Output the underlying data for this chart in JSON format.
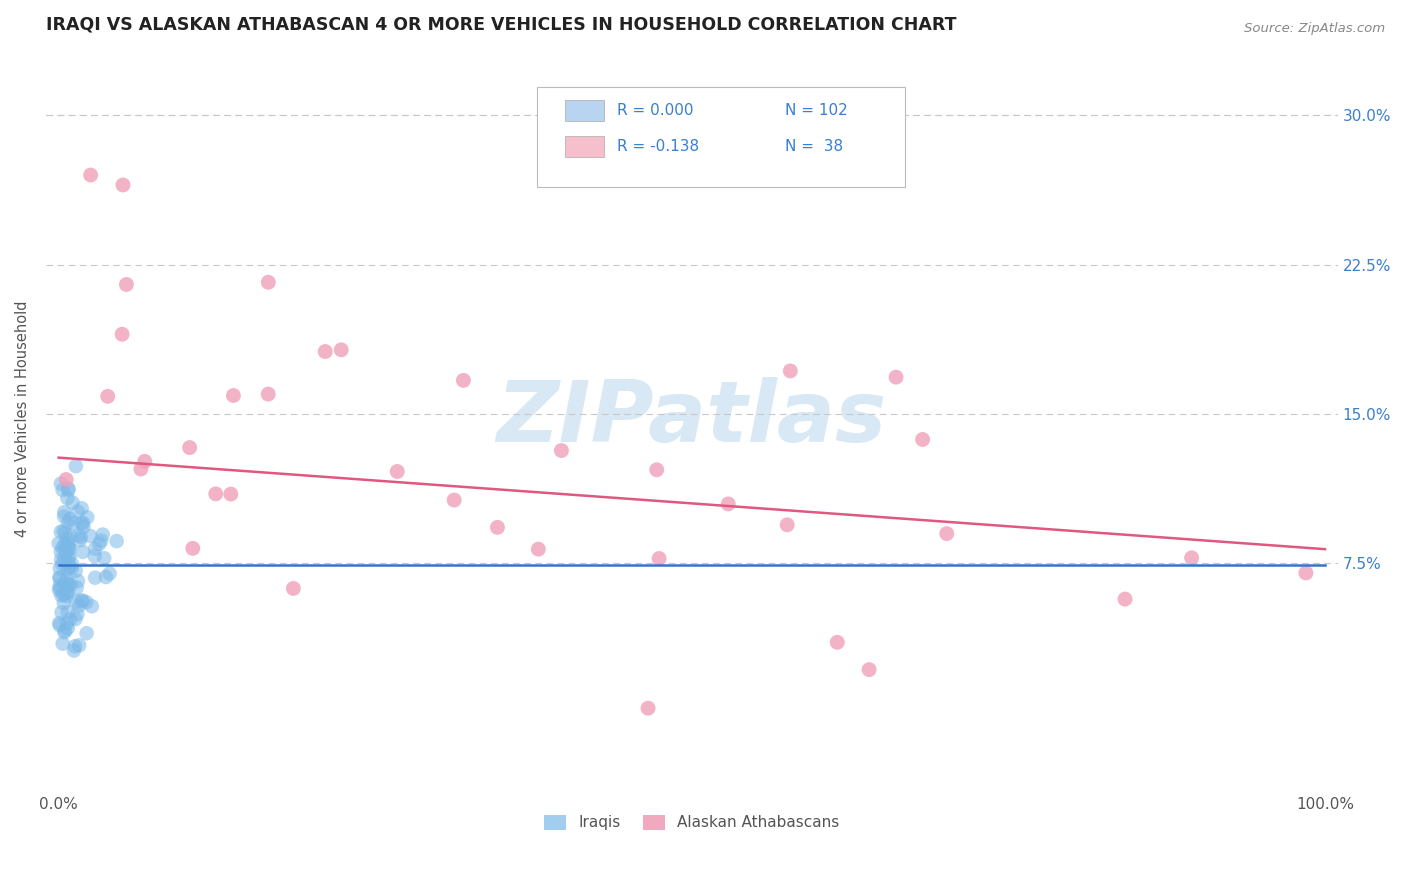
{
  "title": "IRAQI VS ALASKAN ATHABASCAN 4 OR MORE VEHICLES IN HOUSEHOLD CORRELATION CHART",
  "source": "Source: ZipAtlas.com",
  "ylabel": "4 or more Vehicles in Household",
  "yticks": [
    0.075,
    0.15,
    0.225,
    0.3
  ],
  "ytick_labels": [
    "7.5%",
    "15.0%",
    "22.5%",
    "30.0%"
  ],
  "xlim": [
    -0.01,
    1.01
  ],
  "ylim": [
    -0.04,
    0.335
  ],
  "iraqi_R": 0.0,
  "iraqi_N": 102,
  "athabascan_R": -0.138,
  "athabascan_N": 38,
  "iraqi_color": "#7ab8e8",
  "athabascan_color": "#f0a0b8",
  "iraqi_line_color": "#3575c8",
  "athabascan_line_color": "#e05880",
  "background_color": "#ffffff",
  "grid_color": "#c8c8c8",
  "watermark_text": "ZIPatlas",
  "watermark_color": "#d8e8f5",
  "title_fontsize": 12.5,
  "legend_box_color_iraqi": "#b8d4f0",
  "legend_box_color_athabascan": "#f5c0cc",
  "seed": 7,
  "ath_line_y0": 0.128,
  "ath_line_y1": 0.082,
  "iraqi_line_y": 0.074
}
